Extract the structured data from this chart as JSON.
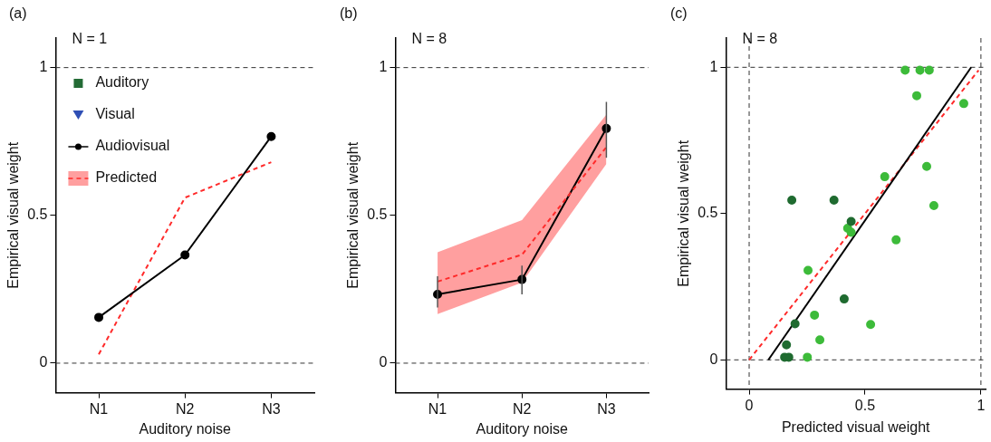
{
  "chart_data": [
    {
      "type": "line",
      "title": "(a)",
      "subtitle": "N = 1",
      "xlabel": "Auditory noise",
      "ylabel": "Empirical visual weight",
      "categories": [
        "N1",
        "N2",
        "N3"
      ],
      "ylim": [
        -0.1,
        1.1
      ],
      "yticks": [
        0,
        0.5,
        1
      ],
      "legend": "top left",
      "series": [
        {
          "name": "Auditory",
          "type": "scatter",
          "marker": "square",
          "color": "#236b35",
          "values": [
            null,
            null,
            null
          ]
        },
        {
          "name": "Visual",
          "type": "scatter",
          "marker": "triangle",
          "color": "#2f4fb5",
          "values": [
            null,
            null,
            null
          ]
        },
        {
          "name": "Audiovisual",
          "marker": "circle",
          "color": "#000000",
          "values": [
            0.155,
            0.366,
            0.767
          ]
        },
        {
          "name": "Predicted",
          "marker": "none",
          "line_style": "dashed",
          "color": "#ff2a2a",
          "values": [
            0.03,
            0.56,
            0.68
          ]
        }
      ],
      "ref_lines": [
        {
          "axis": "y",
          "value": 0,
          "line_style": "dashed"
        },
        {
          "axis": "y",
          "value": 1,
          "line_style": "dashed"
        }
      ]
    },
    {
      "type": "line",
      "title": "(b)",
      "subtitle": "N = 8",
      "xlabel": "Auditory noise",
      "ylabel": "Empirical visual weight",
      "categories": [
        "N1",
        "N2",
        "N3"
      ],
      "ylim": [
        -0.1,
        1.1
      ],
      "yticks": [
        0,
        0.5,
        1
      ],
      "series": [
        {
          "marker": "none",
          "line_style": "dashed",
          "color": "#ff2a2a",
          "values": [
            0.276,
            0.367,
            0.731
          ],
          "lower": [
            0.166,
            0.273,
            0.674
          ],
          "upper": [
            0.375,
            0.484,
            0.841
          ]
        },
        {
          "marker": "circle",
          "color": "#000000",
          "values": [
            0.233,
            0.283,
            0.794
          ],
          "errors": [
            [
              0.188,
              0.294
            ],
            [
              0.233,
              0.33
            ],
            [
              0.695,
              0.884
            ]
          ]
        }
      ],
      "ref_lines": [
        {
          "axis": "y",
          "value": 0,
          "line_style": "dashed"
        },
        {
          "axis": "y",
          "value": 1,
          "line_style": "dashed"
        }
      ]
    },
    {
      "type": "scatter",
      "title": "(c)",
      "subtitle": "N = 8",
      "xlabel": "Predicted visual weight",
      "ylabel": "Empirical visual weight",
      "xlim": [
        -0.1,
        1.02
      ],
      "xticks": [
        0,
        0.5,
        1
      ],
      "ylim": [
        -0.1,
        1.1
      ],
      "yticks": [
        0,
        0.5,
        1
      ],
      "series": [
        {
          "marker": "circle",
          "color": "#1f6b30",
          "x": [
            0.184,
            0.366,
            0.44,
            0.41,
            0.198,
            0.161,
            0.153,
            0.171
          ],
          "values": [
            0.546,
            0.546,
            0.473,
            0.208,
            0.123,
            0.051,
            0.009,
            0.009
          ]
        },
        {
          "marker": "circle",
          "color": "#3dbb3a",
          "x": [
            0.673,
            0.737,
            0.777,
            0.723,
            0.926,
            0.585,
            0.766,
            0.797,
            0.425,
            0.44,
            0.634,
            0.254,
            0.282,
            0.524,
            0.305,
            0.251
          ],
          "values": [
            0.99,
            0.99,
            0.99,
            0.903,
            0.876,
            0.626,
            0.661,
            0.527,
            0.45,
            0.436,
            0.41,
            0.306,
            0.153,
            0.121,
            0.068,
            0.009
          ]
        },
        {
          "type": "line",
          "marker": "none",
          "color": "#000000",
          "x": [
            0.083,
            0.958
          ],
          "values": [
            0,
            1
          ]
        },
        {
          "type": "line",
          "marker": "none",
          "line_style": "dashed",
          "color": "#ff2a2a",
          "x": [
            0,
            0.99
          ],
          "values": [
            0,
            0.99
          ]
        }
      ],
      "ref_lines": [
        {
          "axis": "y",
          "value": 0,
          "line_style": "dashed"
        },
        {
          "axis": "y",
          "value": 1,
          "line_style": "dashed"
        },
        {
          "axis": "x",
          "value": 0,
          "line_style": "dashed"
        },
        {
          "axis": "x",
          "value": 1,
          "line_style": "dashed"
        }
      ]
    }
  ]
}
